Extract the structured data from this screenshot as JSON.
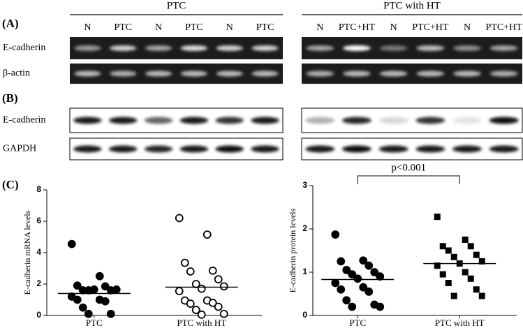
{
  "blots": [
    {
      "panel": "(A)",
      "groups": [
        {
          "title": "PTC",
          "lanes": [
            "N",
            "PTC",
            "N",
            "PTC",
            "N",
            "PTC"
          ]
        },
        {
          "title": "PTC with HT",
          "lanes": [
            "N",
            "PTC+HT",
            "N",
            "PTC+HT",
            "N",
            "PTC+HT"
          ]
        }
      ],
      "rows": [
        "E-cadherin",
        "β-actin"
      ]
    },
    {
      "panel": "(B)",
      "rows": [
        "E-cadherin",
        "GAPDH"
      ]
    }
  ],
  "panel_c": "(C)",
  "chart_data": [
    {
      "type": "scatter",
      "ylabel": "E-cadherin mRNA levels",
      "categories": [
        "PTC",
        "PTC with HT"
      ],
      "ylim": [
        0,
        8
      ],
      "yticks": [
        0,
        2,
        4,
        6,
        8
      ],
      "series": [
        {
          "marker": "filled-circle",
          "values": [
            4.55,
            2.5,
            1.9,
            1.85,
            1.6,
            1.6,
            1.6,
            1.65,
            1.65,
            1.2,
            1.0,
            1.0,
            0.9,
            0.5,
            0.1,
            0.1
          ]
        },
        {
          "marker": "open-circle",
          "values": [
            6.2,
            5.15,
            3.35,
            2.85,
            2.8,
            2.3,
            2.0,
            1.85,
            1.7,
            1.55,
            0.95,
            0.95,
            0.8,
            0.75,
            0.55,
            0.35,
            0.1,
            0.05
          ]
        }
      ],
      "means": [
        1.4,
        1.8
      ]
    },
    {
      "type": "scatter",
      "ylabel": "E-cadherin protein levels",
      "categories": [
        "PTC",
        "PTC with HT"
      ],
      "ylim": [
        0,
        3
      ],
      "yticks": [
        0,
        1,
        2,
        3
      ],
      "annotation": "p<0.001",
      "series": [
        {
          "marker": "filled-circle",
          "values": [
            1.87,
            1.27,
            1.25,
            1.15,
            1.05,
            1.0,
            0.95,
            0.9,
            0.85,
            0.75,
            0.65,
            0.6,
            0.55,
            0.35,
            0.25,
            0.2,
            0.2
          ]
        },
        {
          "marker": "filled-square",
          "values": [
            2.28,
            1.75,
            1.6,
            1.6,
            1.5,
            1.4,
            1.35,
            1.25,
            1.2,
            1.15,
            1.0,
            0.95,
            0.85,
            0.75,
            0.6,
            0.45,
            0.45
          ]
        }
      ],
      "means": [
        0.83,
        1.2
      ]
    }
  ]
}
